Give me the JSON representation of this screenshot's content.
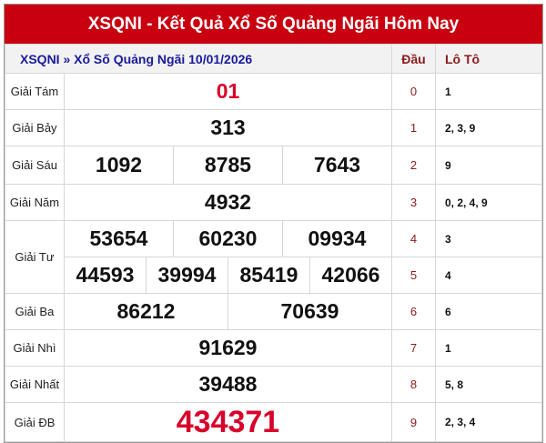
{
  "header": {
    "title": "XSQNI - Kết Quả Xổ Số Quảng Ngãi Hôm Nay"
  },
  "subheader": {
    "breadcrumb": "XSQNI » Xổ Số Quảng Ngãi 10/01/2026",
    "dau_label": "Đầu",
    "loto_label": "Lô Tô"
  },
  "prizes": {
    "g8": {
      "label": "Giải Tám",
      "numbers": [
        "01"
      ]
    },
    "g7": {
      "label": "Giải Bảy",
      "numbers": [
        "313"
      ]
    },
    "g6": {
      "label": "Giải Sáu",
      "numbers": [
        "1092",
        "8785",
        "7643"
      ]
    },
    "g5": {
      "label": "Giải Năm",
      "numbers": [
        "4932"
      ]
    },
    "g4": {
      "label": "Giải Tư",
      "numbers": [
        "53654",
        "60230",
        "09934",
        "44593",
        "39994",
        "85419",
        "42066"
      ]
    },
    "g3": {
      "label": "Giải Ba",
      "numbers": [
        "86212",
        "70639"
      ]
    },
    "g2": {
      "label": "Giải Nhì",
      "numbers": [
        "91629"
      ]
    },
    "g1": {
      "label": "Giải Nhất",
      "numbers": [
        "39488"
      ]
    },
    "gdb": {
      "label": "Giải ĐB",
      "numbers": [
        "434371"
      ]
    }
  },
  "loto": [
    {
      "dau": "0",
      "values": "1"
    },
    {
      "dau": "1",
      "values": "2, 3, 9"
    },
    {
      "dau": "2",
      "values": "9"
    },
    {
      "dau": "3",
      "values": "0, 2, 4, 9"
    },
    {
      "dau": "4",
      "values": "3"
    },
    {
      "dau": "5",
      "values": "4"
    },
    {
      "dau": "6",
      "values": "6"
    },
    {
      "dau": "7",
      "values": "1"
    },
    {
      "dau": "8",
      "values": "5, 8"
    },
    {
      "dau": "9",
      "values": "2, 3, 4"
    }
  ],
  "colors": {
    "header_bg": "#c8000f",
    "accent_red": "#d8002a",
    "link_blue": "#1a1a9c"
  }
}
